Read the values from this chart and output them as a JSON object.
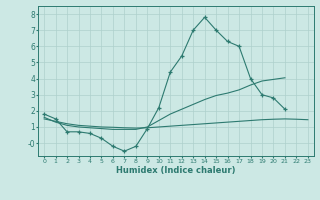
{
  "xlabel": "Humidex (Indice chaleur)",
  "x": [
    0,
    1,
    2,
    3,
    4,
    5,
    6,
    7,
    8,
    9,
    10,
    11,
    12,
    13,
    14,
    15,
    16,
    17,
    18,
    19,
    20,
    21,
    22,
    23
  ],
  "main_line": [
    1.8,
    1.5,
    0.7,
    0.7,
    0.6,
    0.3,
    -0.2,
    -0.5,
    -0.2,
    0.9,
    2.2,
    4.4,
    5.4,
    7.0,
    7.8,
    7.0,
    6.3,
    6.0,
    4.0,
    3.0,
    2.8,
    2.1,
    null,
    null
  ],
  "trend_up": [
    1.6,
    1.3,
    1.1,
    1.0,
    0.95,
    0.9,
    0.85,
    0.85,
    0.85,
    1.0,
    1.4,
    1.8,
    2.1,
    2.4,
    2.7,
    2.95,
    3.1,
    3.3,
    3.6,
    3.85,
    3.95,
    4.05,
    null,
    null
  ],
  "trend_flat": [
    1.5,
    1.35,
    1.2,
    1.1,
    1.05,
    1.0,
    0.98,
    0.95,
    0.93,
    0.95,
    1.0,
    1.05,
    1.1,
    1.15,
    1.2,
    1.25,
    1.3,
    1.35,
    1.4,
    1.45,
    1.48,
    1.5,
    1.48,
    1.45
  ],
  "line_color": "#2d7a70",
  "bg_color": "#cce8e4",
  "grid_color": "#aed0cc",
  "ylim": [
    -0.8,
    8.5
  ],
  "xlim": [
    -0.5,
    23.5
  ],
  "yticks": [
    0,
    1,
    2,
    3,
    4,
    5,
    6,
    7,
    8
  ],
  "ytick_labels": [
    "-0",
    "1",
    "2",
    "3",
    "4",
    "5",
    "6",
    "7",
    "8"
  ],
  "xticks": [
    0,
    1,
    2,
    3,
    4,
    5,
    6,
    7,
    8,
    9,
    10,
    11,
    12,
    13,
    14,
    15,
    16,
    17,
    18,
    19,
    20,
    21,
    22,
    23
  ]
}
